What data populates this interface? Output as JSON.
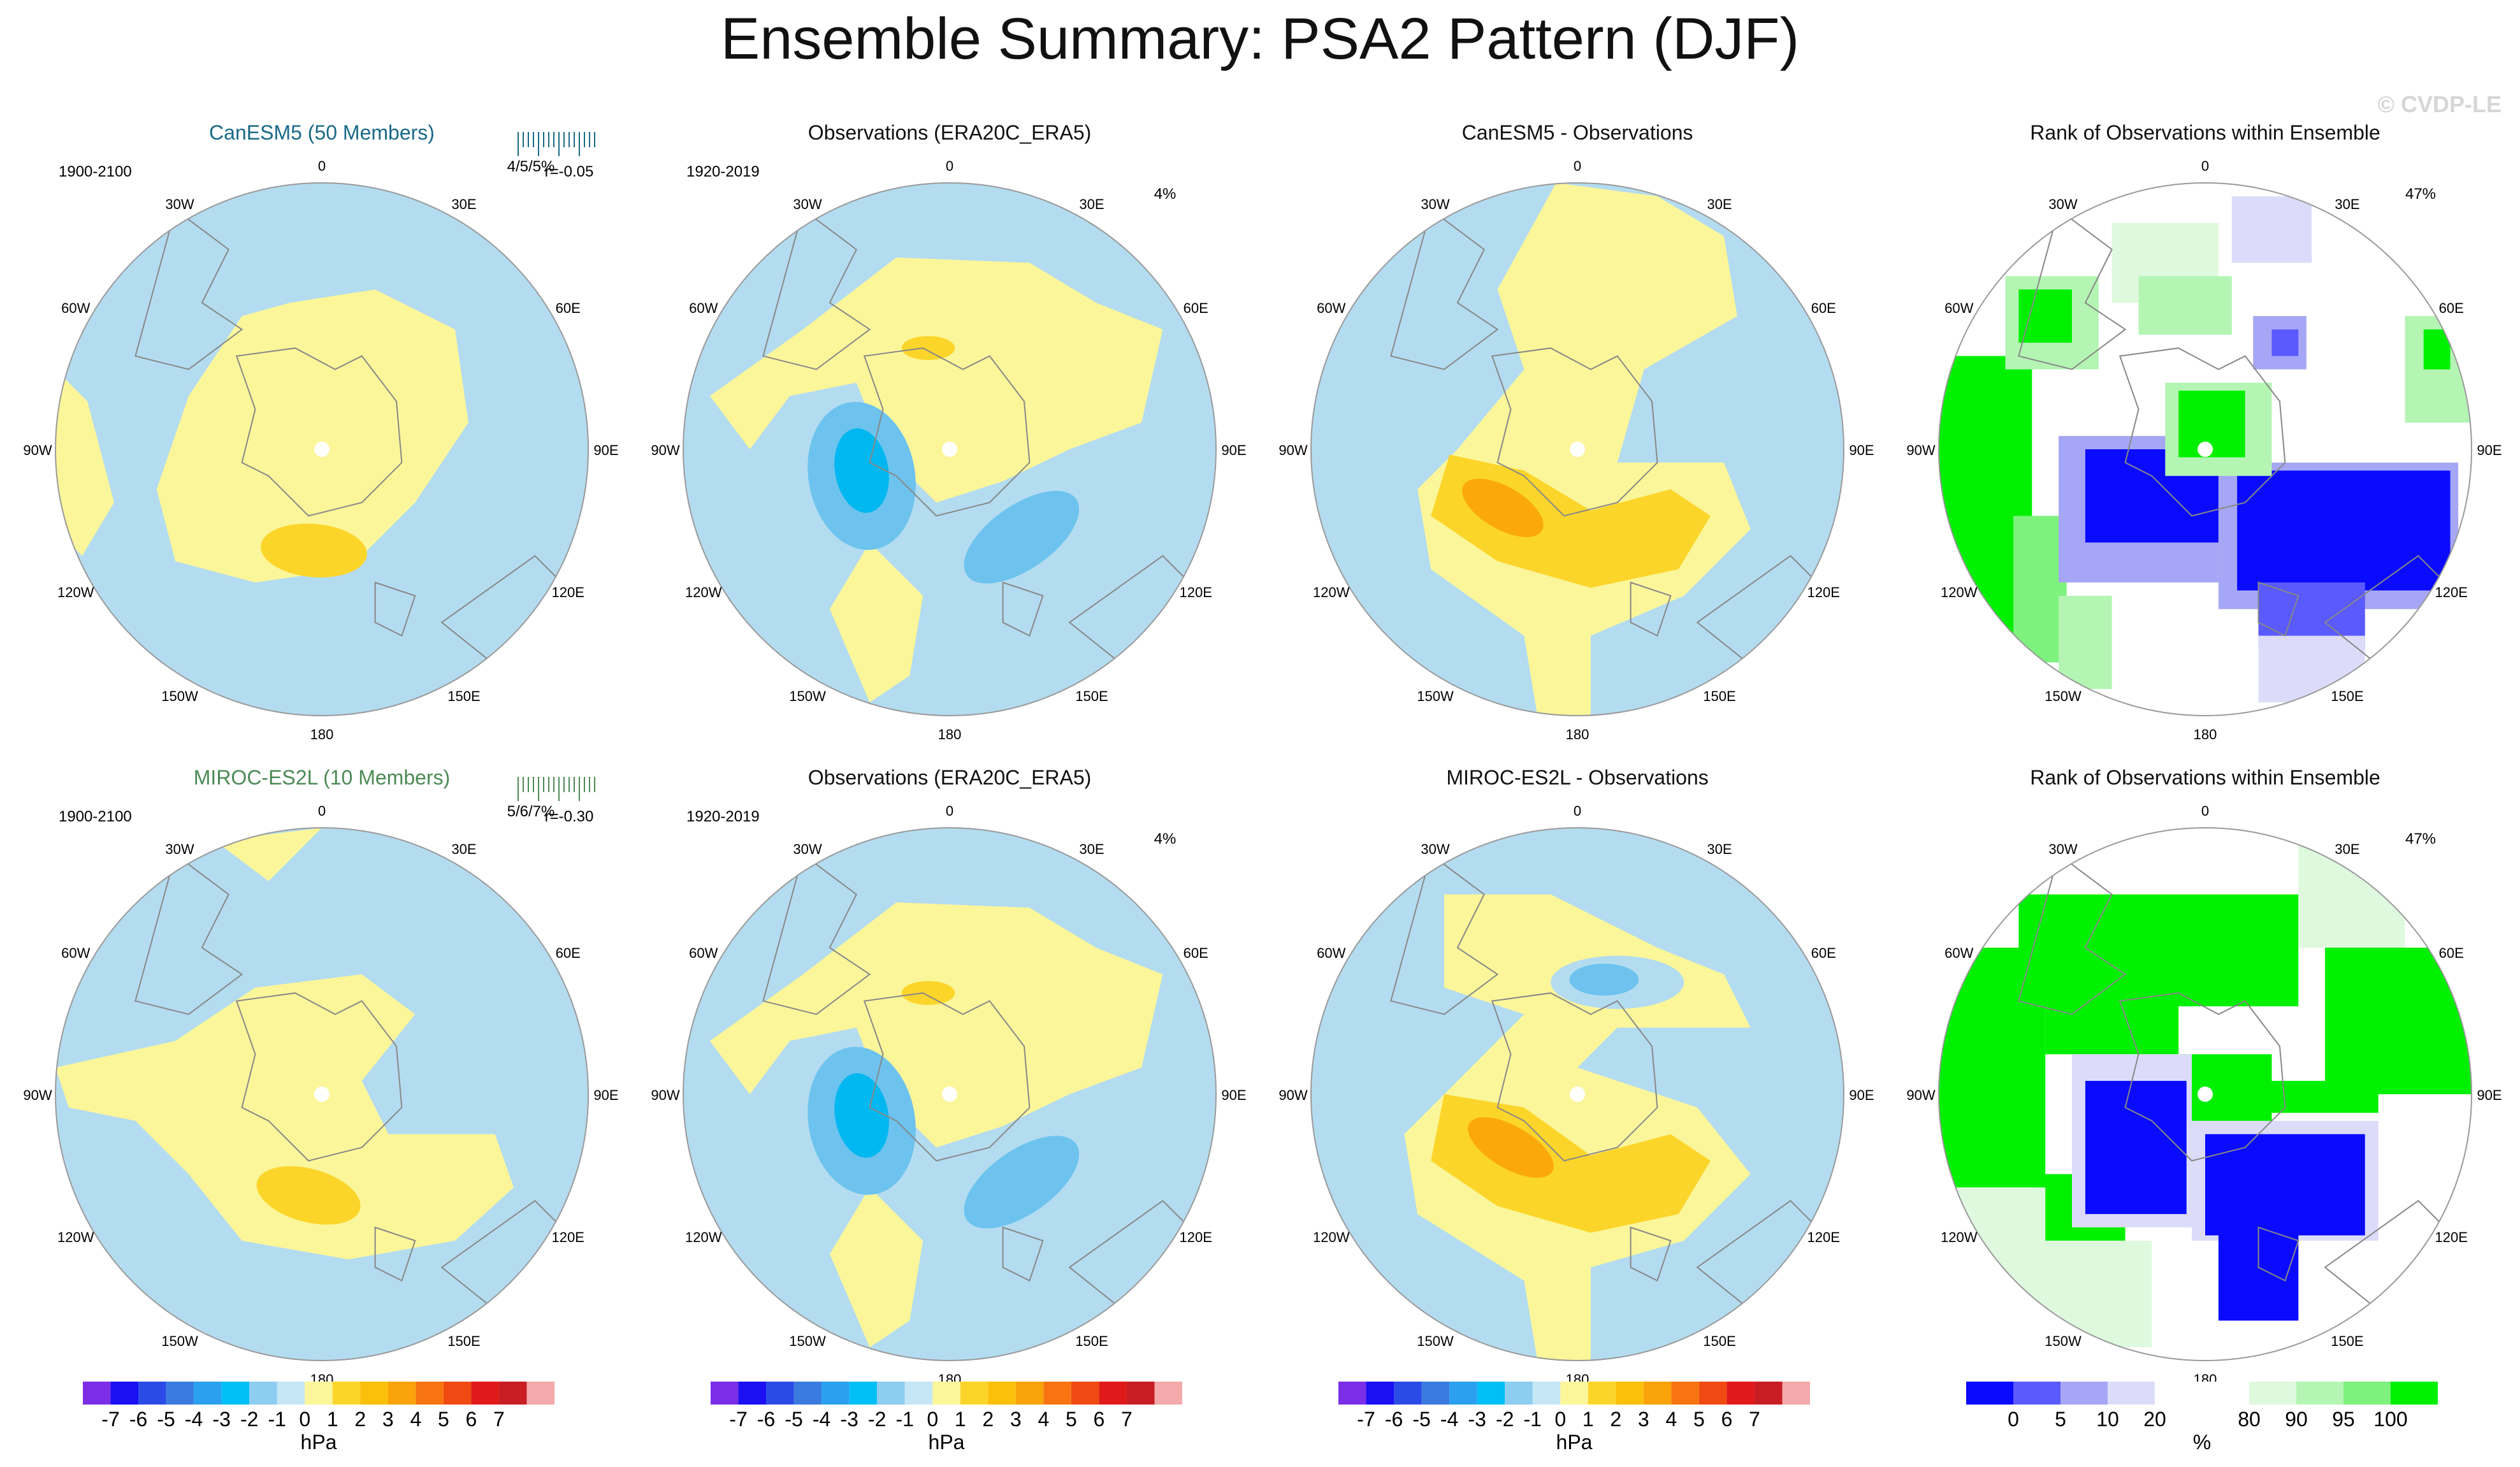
{
  "title": "Ensemble Summary: PSA2 Pattern (DJF)",
  "watermark": "© CVDP-LE",
  "colors": {
    "ocean": "#b4dcf0",
    "neg1": "#6dc3ee",
    "neg2": "#00b7f0",
    "pos0": "#fbf69a",
    "pos1": "#fcd52a",
    "pos2": "#fba90a",
    "rank_lo3": "#0a0aff",
    "rank_lo2": "#5a5aff",
    "rank_lo1": "#a6a6f6",
    "rank_lo0": "#dcdcfa",
    "rank_hi0": "#dff9df",
    "rank_hi1": "#b4f5b4",
    "rank_hi2": "#7df27d",
    "rank_hi3": "#00f000"
  },
  "lon_labels": [
    "0",
    "30E",
    "60E",
    "90E",
    "120E",
    "150E",
    "180",
    "150W",
    "120W",
    "90W",
    "60W",
    "30W"
  ],
  "rows": [
    {
      "panels": [
        {
          "type": "model",
          "title": "CanESM5 (50 Members)",
          "title_color": "#1a6a87",
          "period": "1900-2100",
          "stats": "4/5/5%",
          "corr": "r=-0.05"
        },
        {
          "type": "obs",
          "title": "Observations (ERA20C_ERA5)",
          "period": "1920-2019",
          "pct": "4%"
        },
        {
          "type": "diff",
          "title": "CanESM5 - Observations"
        },
        {
          "type": "rank",
          "title": "Rank of Observations within Ensemble",
          "pct": "47%"
        }
      ]
    },
    {
      "panels": [
        {
          "type": "model",
          "title": "MIROC-ES2L (10 Members)",
          "title_color": "#4c8a55",
          "period": "1900-2100",
          "stats": "5/6/7%",
          "corr": "r=-0.30"
        },
        {
          "type": "obs",
          "title": "Observations (ERA20C_ERA5)",
          "period": "1920-2019",
          "pct": "4%"
        },
        {
          "type": "diff",
          "title": "MIROC-ES2L - Observations"
        },
        {
          "type": "rank",
          "title": "Rank of Observations within Ensemble",
          "pct": "47%"
        }
      ]
    }
  ],
  "colorbar_hpa": {
    "colors": [
      "#7b2ee6",
      "#1a10f2",
      "#2a4be6",
      "#3a7be0",
      "#2aa0ee",
      "#00bff5",
      "#8ccdf0",
      "#c4e6f5",
      "#fbf69a",
      "#fcd52a",
      "#fbc00a",
      "#fba30a",
      "#f77410",
      "#f04a12",
      "#e01a1a",
      "#c81e23",
      "#f4a9aa"
    ],
    "labels": [
      "-7",
      "-6",
      "-5",
      "-4",
      "-3",
      "-2",
      "-1",
      "0",
      "1",
      "2",
      "3",
      "4",
      "5",
      "6",
      "7"
    ],
    "unit": "hPa"
  },
  "colorbar_rank": {
    "colors": [
      "#0a0aff",
      "#5a5aff",
      "#a6a6f6",
      "#dcdcfa",
      "#ffffff",
      "#ffffff",
      "#dff9df",
      "#b4f5b4",
      "#7df27d",
      "#00f000"
    ],
    "labels": [
      "0",
      "5",
      "10",
      "20",
      "80",
      "90",
      "95",
      "100"
    ],
    "unit": "%"
  }
}
